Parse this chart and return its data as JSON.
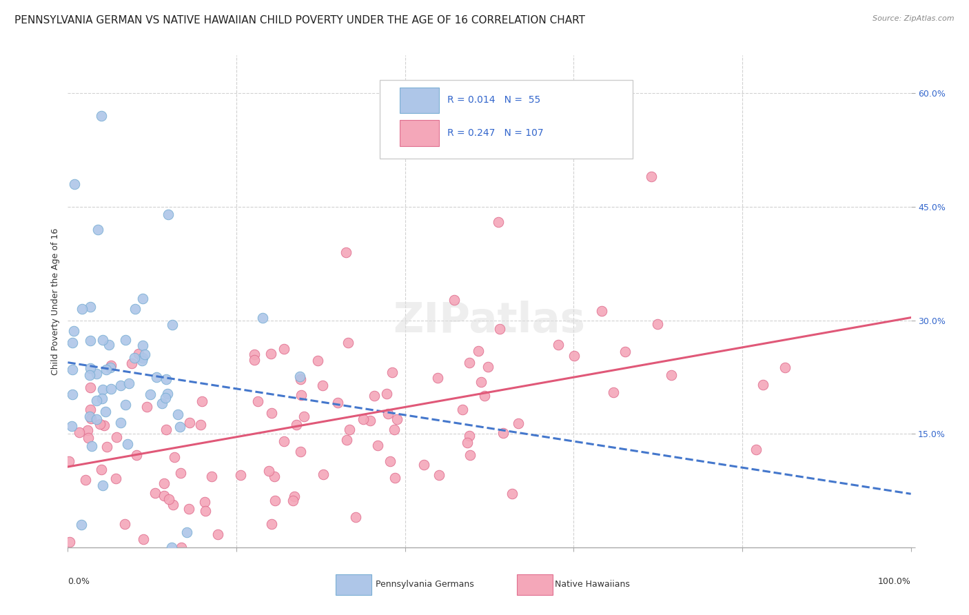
{
  "title": "PENNSYLVANIA GERMAN VS NATIVE HAWAIIAN CHILD POVERTY UNDER THE AGE OF 16 CORRELATION CHART",
  "source": "Source: ZipAtlas.com",
  "ylabel": "Child Poverty Under the Age of 16",
  "series": [
    {
      "label": "Pennsylvania Germans",
      "R": 0.014,
      "N": 55,
      "color_fill": "#aec6e8",
      "color_edge": "#7aafd4",
      "line_color": "#4477cc",
      "line_style": "--"
    },
    {
      "label": "Native Hawaiians",
      "R": 0.247,
      "N": 107,
      "color_fill": "#f4a7b9",
      "color_edge": "#e07090",
      "line_color": "#e05878",
      "line_style": "-"
    }
  ],
  "ylim": [
    0.0,
    0.65
  ],
  "xlim": [
    0.0,
    1.0
  ],
  "yticks": [
    0.0,
    0.15,
    0.3,
    0.45,
    0.6
  ],
  "ytick_labels": [
    "",
    "15.0%",
    "30.0%",
    "45.0%",
    "60.0%"
  ],
  "xtick_labels_show": [
    "0.0%",
    "100.0%"
  ],
  "watermark": "ZIPatlas",
  "background_color": "#ffffff",
  "grid_color": "#cccccc",
  "title_fontsize": 11,
  "axis_label_fontsize": 9,
  "tick_fontsize": 9,
  "legend_fontsize": 10,
  "legend_text_color": "#3366cc"
}
